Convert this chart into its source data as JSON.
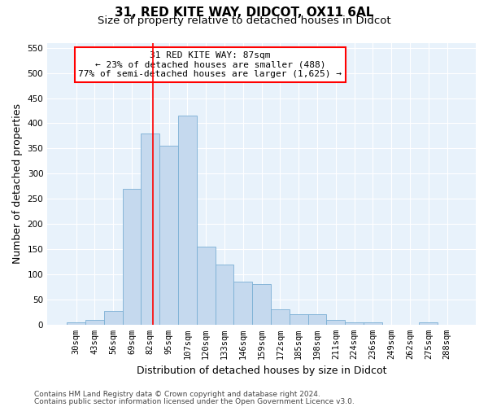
{
  "title_line1": "31, RED KITE WAY, DIDCOT, OX11 6AL",
  "title_line2": "Size of property relative to detached houses in Didcot",
  "xlabel": "Distribution of detached houses by size in Didcot",
  "ylabel": "Number of detached properties",
  "categories": [
    "30sqm",
    "43sqm",
    "56sqm",
    "69sqm",
    "82sqm",
    "95sqm",
    "107sqm",
    "120sqm",
    "133sqm",
    "146sqm",
    "159sqm",
    "172sqm",
    "185sqm",
    "198sqm",
    "211sqm",
    "224sqm",
    "236sqm",
    "249sqm",
    "262sqm",
    "275sqm",
    "288sqm"
  ],
  "values": [
    5,
    10,
    27,
    270,
    380,
    355,
    415,
    155,
    120,
    85,
    80,
    30,
    20,
    20,
    10,
    5,
    5,
    0,
    0,
    5,
    0
  ],
  "bar_color": "#c5d9ee",
  "bar_edge_color": "#7aafd4",
  "vline_x_index": 4.15,
  "vline_color": "red",
  "annotation_text": "31 RED KITE WAY: 87sqm\n← 23% of detached houses are smaller (488)\n77% of semi-detached houses are larger (1,625) →",
  "annotation_box_color": "white",
  "annotation_box_edge_color": "red",
  "ylim": [
    0,
    560
  ],
  "yticks": [
    0,
    50,
    100,
    150,
    200,
    250,
    300,
    350,
    400,
    450,
    500,
    550
  ],
  "footer_line1": "Contains HM Land Registry data © Crown copyright and database right 2024.",
  "footer_line2": "Contains public sector information licensed under the Open Government Licence v3.0.",
  "plot_bg_color": "#e8f2fb",
  "fig_bg_color": "#ffffff",
  "grid_color": "#ffffff",
  "title_fontsize": 11,
  "subtitle_fontsize": 9.5,
  "axis_label_fontsize": 9,
  "tick_fontsize": 7.5,
  "annotation_fontsize": 8,
  "footer_fontsize": 6.5
}
